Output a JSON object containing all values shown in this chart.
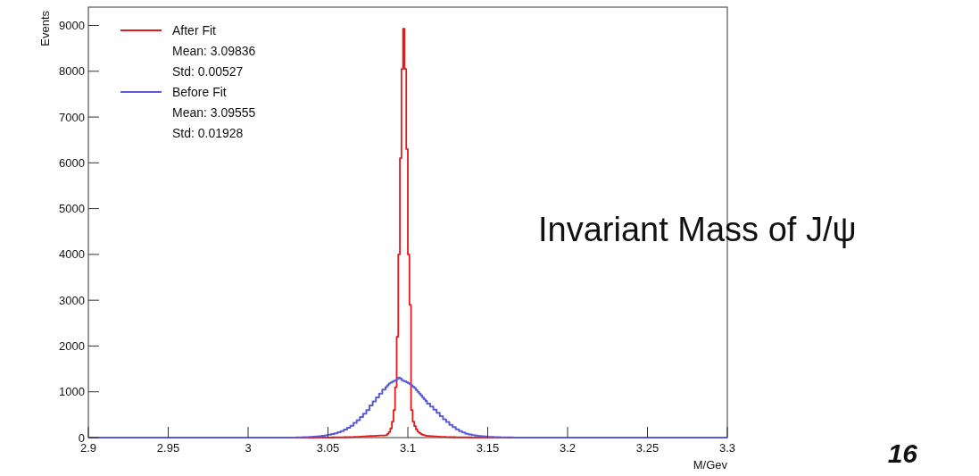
{
  "chart_data": {
    "type": "histogram",
    "xlabel": "M/Gev",
    "ylabel": "Events",
    "bins": [
      2.9,
      3.03,
      3.032,
      3.034,
      3.036,
      3.038,
      3.04,
      3.042,
      3.044,
      3.046,
      3.048,
      3.05,
      3.052,
      3.054,
      3.056,
      3.058,
      3.06,
      3.062,
      3.064,
      3.066,
      3.068,
      3.07,
      3.072,
      3.074,
      3.076,
      3.078,
      3.08,
      3.082,
      3.084,
      3.086,
      3.087,
      3.088,
      3.089,
      3.09,
      3.091,
      3.092,
      3.093,
      3.094,
      3.095,
      3.096,
      3.097,
      3.098,
      3.099,
      3.1,
      3.101,
      3.102,
      3.103,
      3.104,
      3.105,
      3.106,
      3.107,
      3.108,
      3.109,
      3.11,
      3.111,
      3.112,
      3.114,
      3.116,
      3.118,
      3.12,
      3.122,
      3.124,
      3.126,
      3.128,
      3.13,
      3.132,
      3.134,
      3.136,
      3.138,
      3.14,
      3.142,
      3.144,
      3.146,
      3.148,
      3.15,
      3.152,
      3.154,
      3.156,
      3.158,
      3.16,
      3.162,
      3.164,
      3.166,
      3.168,
      3.17,
      3.3
    ],
    "series": [
      {
        "name": "After Fit",
        "color": "#e31a1c",
        "values": [
          0,
          0,
          0,
          0,
          0,
          0,
          0,
          2,
          2,
          3,
          3,
          4,
          5,
          6,
          7,
          8,
          10,
          12,
          14,
          16,
          19,
          22,
          26,
          30,
          34,
          38,
          42,
          46,
          48,
          50,
          80,
          120,
          200,
          350,
          600,
          1100,
          2200,
          4000,
          6100,
          8050,
          8930,
          8050,
          6300,
          4000,
          2900,
          600,
          350,
          250,
          180,
          130,
          100,
          80,
          60,
          50,
          40,
          35,
          30,
          26,
          22,
          19,
          16,
          14,
          12,
          10,
          9,
          8,
          7,
          6,
          5,
          4,
          4,
          3,
          3,
          2,
          2,
          2,
          1,
          1,
          1,
          1,
          0,
          0,
          0,
          0,
          0
        ]
      },
      {
        "name": "Before Fit",
        "color": "#5b5bd6",
        "values": [
          0,
          3,
          5,
          8,
          10,
          14,
          18,
          24,
          30,
          40,
          50,
          62,
          78,
          95,
          115,
          140,
          175,
          215,
          260,
          320,
          380,
          450,
          520,
          600,
          700,
          790,
          880,
          960,
          1050,
          1100,
          1140,
          1180,
          1200,
          1220,
          1240,
          1250,
          1280,
          1310,
          1290,
          1260,
          1240,
          1230,
          1210,
          1190,
          1170,
          1140,
          1110,
          1080,
          1040,
          1000,
          960,
          920,
          880,
          840,
          800,
          740,
          680,
          610,
          540,
          470,
          400,
          340,
          280,
          230,
          180,
          140,
          110,
          85,
          68,
          55,
          45,
          36,
          28,
          22,
          17,
          13,
          10,
          8,
          6,
          5,
          4,
          3,
          2,
          2,
          0
        ]
      }
    ],
    "xlim": [
      2.9,
      3.3
    ],
    "xticks": [
      2.9,
      2.95,
      3,
      3.05,
      3.1,
      3.15,
      3.2,
      3.25,
      3.3
    ],
    "ylim": [
      0,
      9400
    ],
    "yticks": [
      0,
      1000,
      2000,
      3000,
      4000,
      5000,
      6000,
      7000,
      8000,
      9000
    ],
    "legend": "top left",
    "grid": false,
    "annotations": [
      "Mean: 3.09836",
      "Std: 0.00527",
      "Mean: 3.09555",
      "Std: 0.01928",
      "Invariant Mass of J/ψ",
      "16"
    ]
  }
}
